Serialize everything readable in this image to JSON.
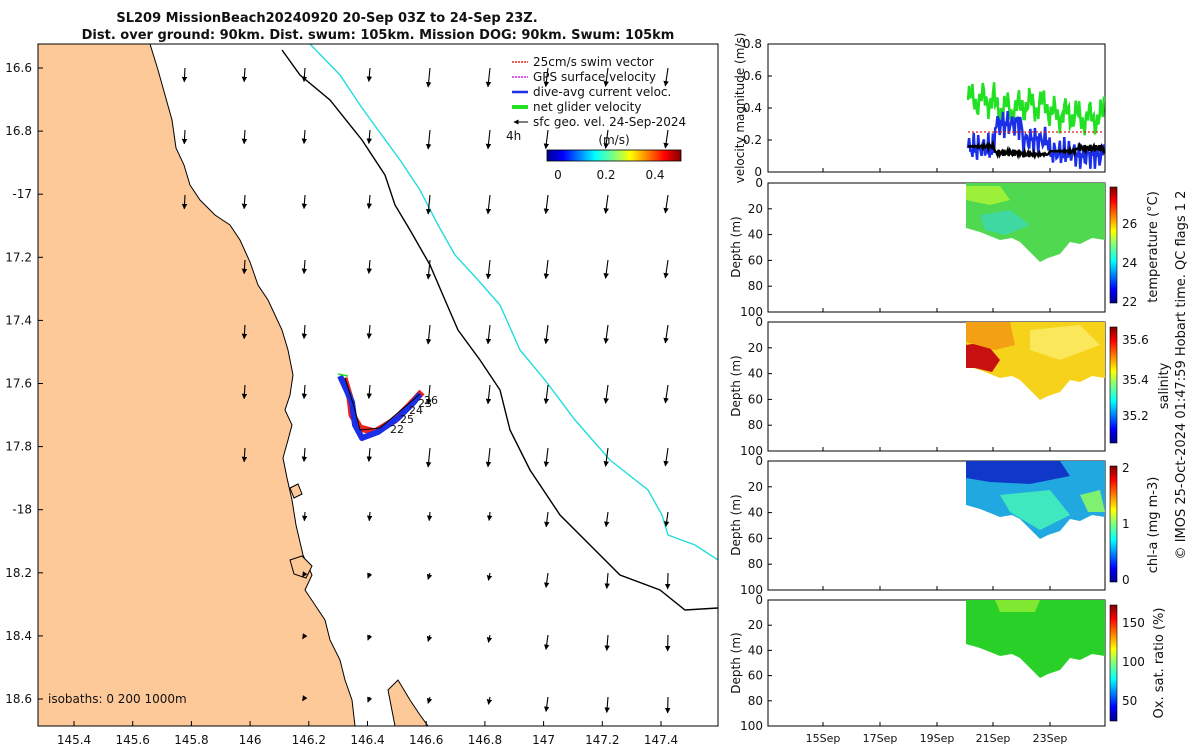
{
  "title": {
    "line1": "SL209 MissionBeach20240920 20-Sep 03Z to 24-Sep 23Z.",
    "line2": "Dist. over ground: 90km. Dist. swum: 105km. Mission DOG: 90km. Swum: 105km"
  },
  "map": {
    "lon_ticks": [
      "145.4",
      "145.6",
      "145.8",
      "146",
      "146.2",
      "146.4",
      "146.6",
      "146.8",
      "147",
      "147.2",
      "147.4"
    ],
    "lat_ticks": [
      "16.6",
      "16.8",
      "-17",
      "17.2",
      "17.4",
      "17.6",
      "17.8",
      "-18",
      "18.2",
      "18.4",
      "18.6"
    ],
    "isobath_label": "isobaths: 0   200  1000m",
    "scale_label": "4h",
    "legend": [
      {
        "label": "25cm/s swim vector",
        "color": "#e8231c"
      },
      {
        "label": "GPS surface velocity",
        "color": "#e020e0"
      },
      {
        "label": "dive-avg current veloc.",
        "color": "#1c2fe8"
      },
      {
        "label": "net glider velocity",
        "color": "#22e022"
      },
      {
        "label": "sfc geo. vel. 24-Sep-2024",
        "color": "#000000"
      }
    ],
    "colorbar": {
      "title": "(m/s)",
      "ticks": [
        "0",
        "0.2",
        "0.4"
      ]
    },
    "day_labels": [
      "26",
      "23",
      "24",
      "25",
      "22"
    ],
    "colors": {
      "land": "#fdc998",
      "isobath_200": "#000000",
      "isobath_1000": "#22dddd",
      "track_red": "#e8231c",
      "track_blue": "#1c2fe8"
    }
  },
  "panels": {
    "velocity": {
      "ylabel": "velocity magnitude (m/s)",
      "yticks": [
        "0",
        "0.2",
        "0.4",
        "0.6",
        "0.8"
      ]
    },
    "temperature": {
      "ylabel": "Depth (m)",
      "clabel": "temperature (°C)",
      "cticks": [
        "22",
        "24",
        "26"
      ]
    },
    "salinity": {
      "ylabel": "Depth (m)",
      "clabel": "salinity",
      "cticks": [
        "35.2",
        "35.4",
        "35.6"
      ]
    },
    "chla": {
      "ylabel": "Depth (m)",
      "clabel": "chl-a (mg m-3)",
      "cticks": [
        "0",
        "1",
        "2"
      ]
    },
    "oxygen": {
      "ylabel": "Depth (m)",
      "clabel": "Ox. sat. ratio (%)",
      "cticks": [
        "50",
        "100",
        "150"
      ]
    },
    "depth_ticks": [
      "0",
      "20",
      "40",
      "60",
      "80",
      "100"
    ],
    "date_ticks": [
      "15Sep",
      "17Sep",
      "19Sep",
      "21Sep",
      "23Sep"
    ]
  },
  "footer": "© IMOS 25-Oct-2024 01:47:59 Hobart time. QC flags 1  2",
  "chart_data": [
    {
      "type": "scatter",
      "title": "SL209 MissionBeach20240920 20-Sep 03Z to 24-Sep 23Z.",
      "xlabel": "",
      "ylabel": "",
      "xlim": [
        145.3,
        147.58
      ],
      "ylim": [
        -18.7,
        -16.52
      ],
      "series": [
        {
          "name": "net glider velocity",
          "x": [
            146.31,
            146.35,
            146.38,
            146.4,
            146.45,
            146.5,
            146.55,
            146.58
          ],
          "y": [
            -17.57,
            -17.6,
            -17.66,
            -17.72,
            -17.74,
            -17.7,
            -17.66,
            -17.63
          ]
        }
      ],
      "annotations": [
        "22",
        "23",
        "24",
        "25",
        "26"
      ]
    },
    {
      "type": "line",
      "ylabel": "velocity magnitude (m/s)",
      "ylim": [
        0,
        0.8
      ],
      "x_dates": [
        "2024-09-20",
        "2024-09-21",
        "2024-09-22",
        "2024-09-23",
        "2024-09-24",
        "2024-09-25"
      ],
      "series": [
        {
          "name": "net glider velocity",
          "values": [
            0.45,
            0.4,
            0.42,
            0.36,
            0.34,
            0.4
          ]
        },
        {
          "name": "dive-avg current veloc.",
          "values": [
            0.15,
            0.3,
            0.2,
            0.12,
            0.1,
            0.18
          ]
        },
        {
          "name": "sfc geo. vel. 24-Sep-2024",
          "values": [
            0.16,
            0.12,
            0.11,
            0.13,
            0.15,
            0.13
          ]
        },
        {
          "name": "25cm/s swim vector",
          "values": [
            0.25,
            0.25,
            0.25,
            0.25,
            0.25,
            0.25
          ]
        }
      ]
    },
    {
      "type": "heatmap",
      "ylabel": "Depth (m)",
      "ylim": [
        100,
        0
      ],
      "colorbar_label": "temperature (°C)",
      "clim": [
        22,
        27.5
      ],
      "typical": 25.3
    },
    {
      "type": "heatmap",
      "ylabel": "Depth (m)",
      "ylim": [
        100,
        0
      ],
      "colorbar_label": "salinity",
      "clim": [
        35.1,
        35.7
      ],
      "typical": 35.5
    },
    {
      "type": "heatmap",
      "ylabel": "Depth (m)",
      "ylim": [
        100,
        0
      ],
      "colorbar_label": "chl-a (mg m-3)",
      "clim": [
        0,
        2
      ],
      "typical": 0.9
    },
    {
      "type": "heatmap",
      "ylabel": "Depth (m)",
      "ylim": [
        100,
        0
      ],
      "colorbar_label": "Ox. sat. ratio (%)",
      "clim": [
        20,
        175
      ],
      "typical": 112
    }
  ]
}
